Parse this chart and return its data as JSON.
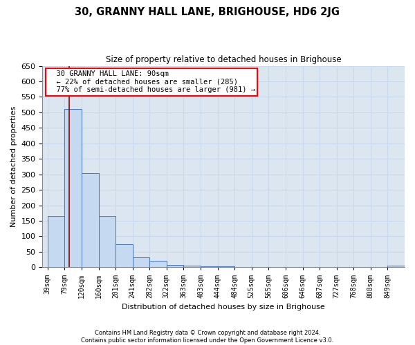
{
  "title": "30, GRANNY HALL LANE, BRIGHOUSE, HD6 2JG",
  "subtitle": "Size of property relative to detached houses in Brighouse",
  "xlabel": "Distribution of detached houses by size in Brighouse",
  "ylabel": "Number of detached properties",
  "bin_labels": [
    "39sqm",
    "79sqm",
    "120sqm",
    "160sqm",
    "201sqm",
    "241sqm",
    "282sqm",
    "322sqm",
    "363sqm",
    "403sqm",
    "444sqm",
    "484sqm",
    "525sqm",
    "565sqm",
    "606sqm",
    "646sqm",
    "687sqm",
    "727sqm",
    "768sqm",
    "808sqm",
    "849sqm"
  ],
  "bar_values": [
    165,
    510,
    303,
    165,
    75,
    32,
    20,
    8,
    5,
    3,
    2,
    1,
    1,
    1,
    0,
    0,
    1,
    0,
    0,
    1,
    5
  ],
  "bar_color": "#c5d9f0",
  "bar_edge_color": "#4472c4",
  "grid_color": "#c8d8eb",
  "background_color": "#dce6f1",
  "annotation_text": "  30 GRANNY HALL LANE: 90sqm\n  ← 22% of detached houses are smaller (285)\n  77% of semi-detached houses are larger (981) →",
  "ylim": [
    0,
    650
  ],
  "yticks": [
    0,
    50,
    100,
    150,
    200,
    250,
    300,
    350,
    400,
    450,
    500,
    550,
    600,
    650
  ],
  "footnote1": "Contains HM Land Registry data © Crown copyright and database right 2024.",
  "footnote2": "Contains public sector information licensed under the Open Government Licence v3.0."
}
